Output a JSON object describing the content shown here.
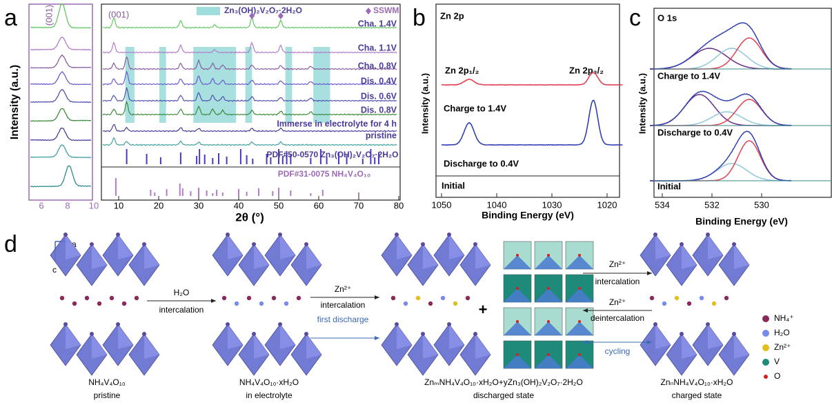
{
  "panels": {
    "a": {
      "letter": "a",
      "inset_peak": "(001)",
      "inset_xticks": [
        "6",
        "8",
        "10"
      ],
      "main_peak": "(001)",
      "legend_phase": "Zn₃(OH)₂V₂O₇·2H₂O",
      "legend_marker": "SSWM",
      "traces": [
        "Cha. 1.4V",
        "Cha. 1.1V",
        "Cha. 0.8V",
        "Dis. 0.4V",
        "Dis. 0.6V",
        "Dis. 0.8V",
        "Immerse in electrolyte for 4 h",
        "pristine"
      ],
      "ref1": "PDF#50-0570 Zn₃(OH)₂V₂O₇·2H₂O",
      "ref2": "PDF#31-0075 NH₄V₄O₁₀",
      "ylabel": "Intensity (a.u.)",
      "xlabel": "2θ (°)",
      "xticks": [
        "10",
        "20",
        "30",
        "40",
        "50",
        "60",
        "70",
        "80"
      ]
    },
    "b": {
      "letter": "b",
      "title": "Zn 2p",
      "peak1": "Zn 2p₁/₂",
      "peak2": "Zn 2p₃/₂",
      "states": [
        "Charge to 1.4V",
        "Discharge to 0.4V",
        "Initial"
      ],
      "ylabel": "Intensity (a.u.)",
      "xlabel": "Binding Energy (eV)",
      "xticks": [
        "1050",
        "1040",
        "1030",
        "1020"
      ]
    },
    "c": {
      "letter": "c",
      "title": "O 1s",
      "states": [
        "Charge to 1.4V",
        "Discharge to 0.4V",
        "Initial"
      ],
      "ylabel": "Intensity (a.u.)",
      "xlabel": "Binding Energy (eV)",
      "xticks": [
        "534",
        "532",
        "530"
      ]
    },
    "d": {
      "letter": "d",
      "axis_a": "a",
      "axis_c": "c",
      "step1": [
        "H₂O",
        "intercalation"
      ],
      "step2": [
        "Zn²⁺",
        "intercalation",
        "first discharge"
      ],
      "plus": "+",
      "step3": [
        "Zn²⁺",
        "intercalation",
        "Zn²⁺",
        "deintercalation",
        "cycling"
      ],
      "captions": [
        [
          "NH₄V₄O₁₀",
          "pristine"
        ],
        [
          "NH₄V₄O₁₀·xH₂O",
          "in electrolyte"
        ],
        [
          "ZnₘNH₄V₄O₁₀·xH₂O+yZn₃(OH)₂V₂O₇·2H₂O",
          "discharged state"
        ],
        [
          "ZnₙNH₄V₄O₁₀·xH₂O",
          "charged state"
        ]
      ],
      "legend": [
        "NH₄⁺",
        "H₂O",
        "Zn²⁺",
        "V",
        "O"
      ]
    }
  }
}
